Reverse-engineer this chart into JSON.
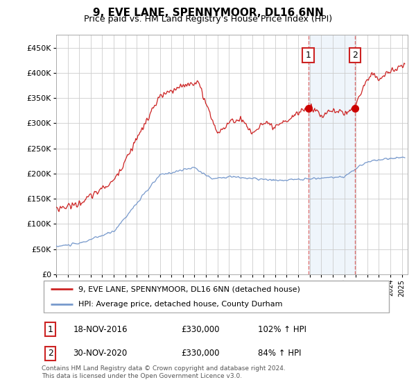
{
  "title": "9, EVE LANE, SPENNYMOOR, DL16 6NN",
  "subtitle": "Price paid vs. HM Land Registry's House Price Index (HPI)",
  "ylim": [
    0,
    475000
  ],
  "xlim_start": 1995.0,
  "xlim_end": 2025.5,
  "hpi_color": "#7799cc",
  "price_color": "#cc2222",
  "marker1_date": 2016.88,
  "marker2_date": 2020.92,
  "marker1_label": "18-NOV-2016",
  "marker2_label": "30-NOV-2020",
  "marker1_price": 330000,
  "marker2_price": 330000,
  "marker1_hpi": "102% ↑ HPI",
  "marker2_hpi": "84% ↑ HPI",
  "legend_label1": "9, EVE LANE, SPENNYMOOR, DL16 6NN (detached house)",
  "legend_label2": "HPI: Average price, detached house, County Durham",
  "footnote": "Contains HM Land Registry data © Crown copyright and database right 2024.\nThis data is licensed under the Open Government Licence v3.0.",
  "shaded_region_start": 2016.88,
  "shaded_region_end": 2020.92
}
